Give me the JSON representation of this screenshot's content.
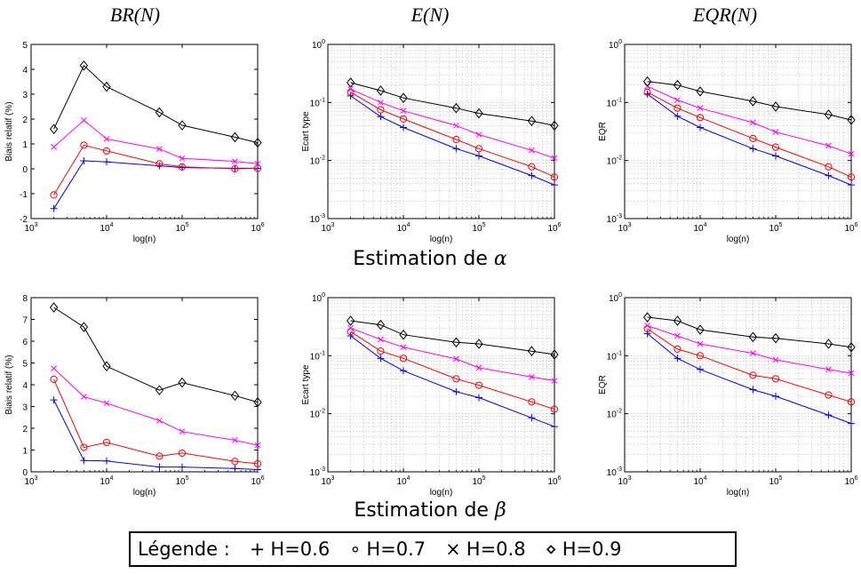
{
  "column_titles": [
    "BR(N)",
    "E(N)",
    "EQR(N)"
  ],
  "row_titles": [
    {
      "prefix": "Estimation de ",
      "symbol": "α"
    },
    {
      "prefix": "Estimation de ",
      "symbol": "β"
    }
  ],
  "legend": {
    "label": "Légende :",
    "entries": [
      {
        "symbol": "+",
        "text": "H=0.6",
        "color": "#0000ff"
      },
      {
        "symbol": "∘",
        "text": "H=0.7",
        "color": "#ff0000"
      },
      {
        "symbol": "×",
        "text": "H=0.8",
        "color": "#ff00ff"
      },
      {
        "symbol": "⋄",
        "text": "H=0.9",
        "color": "#000000"
      }
    ]
  },
  "chart_data": [
    {
      "id": "alpha-br",
      "type": "line",
      "xscale": "log",
      "yscale": "linear",
      "xlabel": "log(n)",
      "ylabel": "Biais relatif (%)",
      "xlim": [
        1000,
        1000000
      ],
      "ylim": [
        -2,
        5
      ],
      "xticks": [
        1000,
        10000,
        100000,
        1000000
      ],
      "xtick_labels": [
        {
          "b": "10",
          "e": "3"
        },
        {
          "b": "10",
          "e": "4"
        },
        {
          "b": "10",
          "e": "5"
        },
        {
          "b": "10",
          "e": "6"
        }
      ],
      "yticks": [
        -2,
        -1,
        0,
        1,
        2,
        3,
        4,
        5
      ],
      "ytick_labels": [
        "-2",
        "-1",
        "0",
        "1",
        "2",
        "3",
        "4",
        "5"
      ],
      "grid": false,
      "x": [
        2000,
        5000,
        10000,
        50000,
        100000,
        500000,
        1000000
      ],
      "series": [
        {
          "marker": "plus",
          "color": "#0000ff",
          "values": [
            -1.6,
            0.32,
            0.28,
            0.12,
            0.05,
            0.02,
            0.02
          ]
        },
        {
          "marker": "circle",
          "color": "#ff0000",
          "values": [
            -1.05,
            0.95,
            0.72,
            0.2,
            0.08,
            0.0,
            0.02
          ]
        },
        {
          "marker": "x",
          "color": "#ff00ff",
          "values": [
            0.88,
            1.95,
            1.2,
            0.8,
            0.42,
            0.3,
            0.2
          ]
        },
        {
          "marker": "diamond",
          "color": "#000000",
          "values": [
            1.6,
            4.15,
            3.3,
            2.27,
            1.75,
            1.27,
            1.05
          ]
        }
      ]
    },
    {
      "id": "alpha-e",
      "type": "line",
      "xscale": "log",
      "yscale": "log",
      "xlabel": "log(n)",
      "ylabel": "Ecart type",
      "xlim": [
        1000,
        1000000
      ],
      "ylim": [
        0.001,
        1
      ],
      "xticks": [
        1000,
        10000,
        100000,
        1000000
      ],
      "xtick_labels": [
        {
          "b": "10",
          "e": "3"
        },
        {
          "b": "10",
          "e": "4"
        },
        {
          "b": "10",
          "e": "5"
        },
        {
          "b": "10",
          "e": "6"
        }
      ],
      "yticks": [
        0.001,
        0.01,
        0.1,
        1
      ],
      "ytick_labels": [
        {
          "b": "10",
          "e": "-3"
        },
        {
          "b": "10",
          "e": "-2"
        },
        {
          "b": "10",
          "e": "-1"
        },
        {
          "b": "10",
          "e": "0"
        }
      ],
      "grid": true,
      "x": [
        2000,
        5000,
        10000,
        50000,
        100000,
        500000,
        1000000
      ],
      "series": [
        {
          "marker": "plus",
          "color": "#0000ff",
          "values": [
            0.13,
            0.057,
            0.037,
            0.016,
            0.012,
            0.0055,
            0.0038
          ]
        },
        {
          "marker": "circle",
          "color": "#ff0000",
          "values": [
            0.15,
            0.075,
            0.052,
            0.023,
            0.016,
            0.0078,
            0.0052
          ]
        },
        {
          "marker": "x",
          "color": "#ff00ff",
          "values": [
            0.17,
            0.1,
            0.072,
            0.04,
            0.028,
            0.015,
            0.011
          ]
        },
        {
          "marker": "diamond",
          "color": "#000000",
          "values": [
            0.22,
            0.16,
            0.12,
            0.08,
            0.065,
            0.048,
            0.04
          ]
        }
      ]
    },
    {
      "id": "alpha-eqr",
      "type": "line",
      "xscale": "log",
      "yscale": "log",
      "xlabel": "log(n)",
      "ylabel": "EQR",
      "xlim": [
        1000,
        1000000
      ],
      "ylim": [
        0.001,
        1
      ],
      "xticks": [
        1000,
        10000,
        100000,
        1000000
      ],
      "xtick_labels": [
        {
          "b": "10",
          "e": "3"
        },
        {
          "b": "10",
          "e": "4"
        },
        {
          "b": "10",
          "e": "5"
        },
        {
          "b": "10",
          "e": "6"
        }
      ],
      "yticks": [
        0.001,
        0.01,
        0.1,
        1
      ],
      "ytick_labels": [
        {
          "b": "10",
          "e": "-3"
        },
        {
          "b": "10",
          "e": "-2"
        },
        {
          "b": "10",
          "e": "-1"
        },
        {
          "b": "10",
          "e": "0"
        }
      ],
      "grid": true,
      "x": [
        2000,
        5000,
        10000,
        50000,
        100000,
        500000,
        1000000
      ],
      "series": [
        {
          "marker": "plus",
          "color": "#0000ff",
          "values": [
            0.14,
            0.058,
            0.037,
            0.016,
            0.012,
            0.0055,
            0.0038
          ]
        },
        {
          "marker": "circle",
          "color": "#ff0000",
          "values": [
            0.15,
            0.08,
            0.055,
            0.024,
            0.017,
            0.0078,
            0.0052
          ]
        },
        {
          "marker": "x",
          "color": "#ff00ff",
          "values": [
            0.19,
            0.11,
            0.08,
            0.045,
            0.031,
            0.018,
            0.013
          ]
        },
        {
          "marker": "diamond",
          "color": "#000000",
          "values": [
            0.23,
            0.2,
            0.155,
            0.105,
            0.085,
            0.062,
            0.05
          ]
        }
      ]
    },
    {
      "id": "beta-br",
      "type": "line",
      "xscale": "log",
      "yscale": "linear",
      "xlabel": "log(n)",
      "ylabel": "Biais relatif (%)",
      "xlim": [
        1000,
        1000000
      ],
      "ylim": [
        0,
        8
      ],
      "xticks": [
        1000,
        10000,
        100000,
        1000000
      ],
      "xtick_labels": [
        {
          "b": "10",
          "e": "3"
        },
        {
          "b": "10",
          "e": "4"
        },
        {
          "b": "10",
          "e": "5"
        },
        {
          "b": "10",
          "e": "6"
        }
      ],
      "yticks": [
        0,
        1,
        2,
        3,
        4,
        5,
        6,
        7,
        8
      ],
      "ytick_labels": [
        "0",
        "1",
        "2",
        "3",
        "4",
        "5",
        "6",
        "7",
        "8"
      ],
      "grid": false,
      "x": [
        2000,
        5000,
        10000,
        50000,
        100000,
        500000,
        1000000
      ],
      "series": [
        {
          "marker": "plus",
          "color": "#0000ff",
          "values": [
            3.3,
            0.52,
            0.5,
            0.22,
            0.22,
            0.15,
            0.1
          ]
        },
        {
          "marker": "circle",
          "color": "#ff0000",
          "values": [
            4.25,
            1.12,
            1.35,
            0.72,
            0.86,
            0.48,
            0.37
          ]
        },
        {
          "marker": "x",
          "color": "#ff00ff",
          "values": [
            4.75,
            3.45,
            3.15,
            2.35,
            1.85,
            1.45,
            1.22
          ]
        },
        {
          "marker": "diamond",
          "color": "#000000",
          "values": [
            7.55,
            6.65,
            4.85,
            3.75,
            4.1,
            3.5,
            3.2
          ]
        }
      ]
    },
    {
      "id": "beta-e",
      "type": "line",
      "xscale": "log",
      "yscale": "log",
      "xlabel": "log(n)",
      "ylabel": "Ecart type",
      "xlim": [
        1000,
        1000000
      ],
      "ylim": [
        0.001,
        1
      ],
      "xticks": [
        1000,
        10000,
        100000,
        1000000
      ],
      "xtick_labels": [
        {
          "b": "10",
          "e": "3"
        },
        {
          "b": "10",
          "e": "4"
        },
        {
          "b": "10",
          "e": "5"
        },
        {
          "b": "10",
          "e": "6"
        }
      ],
      "yticks": [
        0.001,
        0.01,
        0.1,
        1
      ],
      "ytick_labels": [
        {
          "b": "10",
          "e": "-3"
        },
        {
          "b": "10",
          "e": "-2"
        },
        {
          "b": "10",
          "e": "-1"
        },
        {
          "b": "10",
          "e": "0"
        }
      ],
      "grid": true,
      "x": [
        2000,
        5000,
        10000,
        50000,
        100000,
        500000,
        1000000
      ],
      "series": [
        {
          "marker": "plus",
          "color": "#0000ff",
          "values": [
            0.22,
            0.09,
            0.055,
            0.024,
            0.019,
            0.0085,
            0.006
          ]
        },
        {
          "marker": "circle",
          "color": "#ff0000",
          "values": [
            0.26,
            0.12,
            0.09,
            0.04,
            0.031,
            0.016,
            0.012
          ]
        },
        {
          "marker": "x",
          "color": "#ff00ff",
          "values": [
            0.3,
            0.19,
            0.14,
            0.088,
            0.062,
            0.043,
            0.037
          ]
        },
        {
          "marker": "diamond",
          "color": "#000000",
          "values": [
            0.4,
            0.34,
            0.23,
            0.17,
            0.16,
            0.12,
            0.105
          ]
        }
      ]
    },
    {
      "id": "beta-eqr",
      "type": "line",
      "xscale": "log",
      "yscale": "log",
      "xlabel": "log(n)",
      "ylabel": "EQR",
      "xlim": [
        1000,
        1000000
      ],
      "ylim": [
        0.001,
        1
      ],
      "xticks": [
        1000,
        10000,
        100000,
        1000000
      ],
      "xtick_labels": [
        {
          "b": "10",
          "e": "3"
        },
        {
          "b": "10",
          "e": "4"
        },
        {
          "b": "10",
          "e": "5"
        },
        {
          "b": "10",
          "e": "6"
        }
      ],
      "yticks": [
        0.001,
        0.01,
        0.1,
        1
      ],
      "ytick_labels": [
        {
          "b": "10",
          "e": "-3"
        },
        {
          "b": "10",
          "e": "-2"
        },
        {
          "b": "10",
          "e": "-1"
        },
        {
          "b": "10",
          "e": "0"
        }
      ],
      "grid": true,
      "x": [
        2000,
        5000,
        10000,
        50000,
        100000,
        500000,
        1000000
      ],
      "series": [
        {
          "marker": "plus",
          "color": "#0000ff",
          "values": [
            0.24,
            0.09,
            0.058,
            0.026,
            0.02,
            0.0095,
            0.0068
          ]
        },
        {
          "marker": "circle",
          "color": "#ff0000",
          "values": [
            0.29,
            0.13,
            0.1,
            0.046,
            0.04,
            0.021,
            0.016
          ]
        },
        {
          "marker": "x",
          "color": "#ff00ff",
          "values": [
            0.33,
            0.22,
            0.16,
            0.11,
            0.085,
            0.058,
            0.05
          ]
        },
        {
          "marker": "diamond",
          "color": "#000000",
          "values": [
            0.46,
            0.4,
            0.28,
            0.21,
            0.2,
            0.16,
            0.14
          ]
        }
      ]
    }
  ]
}
